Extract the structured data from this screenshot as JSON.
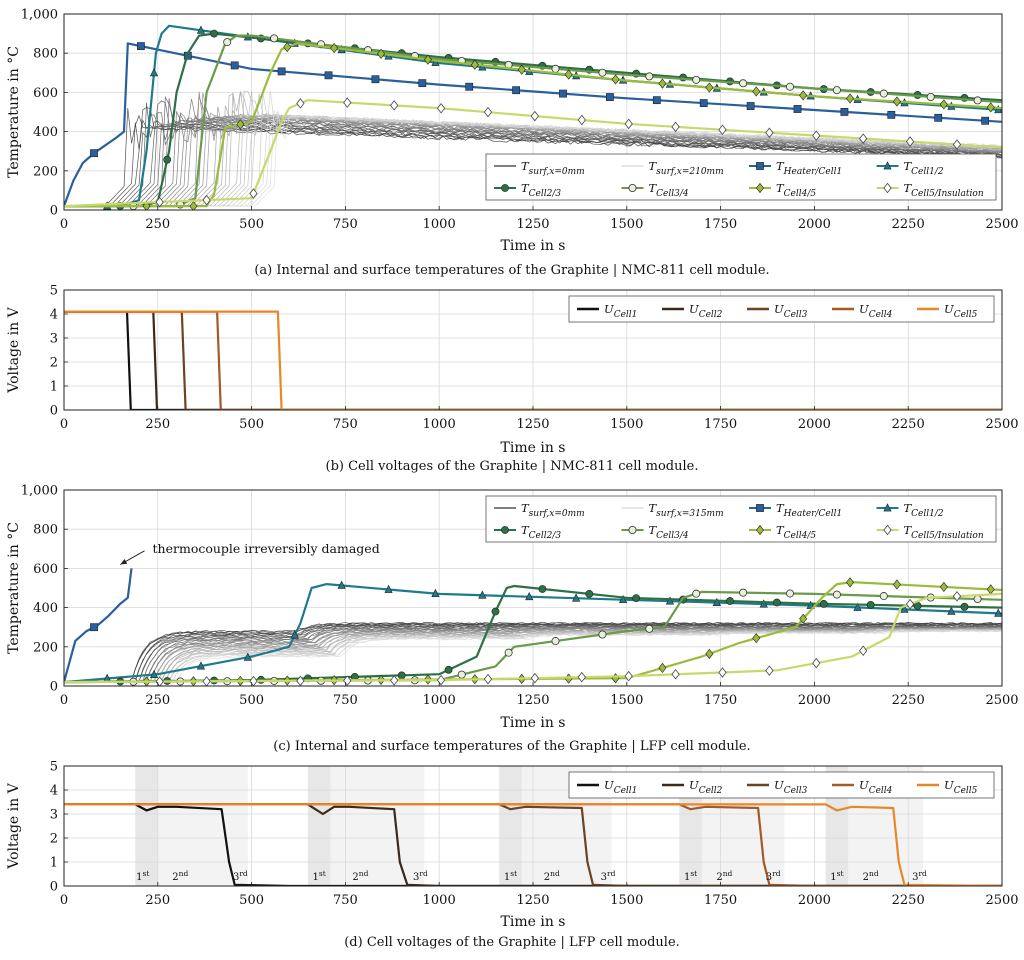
{
  "chart_data": [
    {
      "id": "a",
      "type": "line",
      "caption": "(a) Internal and surface temperatures of the Graphite | NMC-811 cell module.",
      "xlabel": "Time in s",
      "ylabel": "Temperature in °C",
      "xlim": [
        0,
        2500
      ],
      "ylim": [
        0,
        1000
      ],
      "xticks": [
        0,
        250,
        500,
        750,
        1000,
        1250,
        1500,
        1750,
        2000,
        2250,
        2500
      ],
      "yticks": [
        0,
        200,
        400,
        600,
        800,
        1000
      ],
      "ytick_labels": [
        "0",
        "200",
        "400",
        "600",
        "800",
        "1,000"
      ],
      "legend": {
        "position": "bottom-right",
        "columns": 4
      },
      "surface_band": {
        "label_start": "T_surf,x=0mm",
        "label_end": "T_surf,x=210mm",
        "color_dark": "#333333",
        "color_light": "#d6d6d6"
      },
      "series": [
        {
          "name": "T_Heater/Cell1",
          "color": "#2a5f9e",
          "marker": "square",
          "x": [
            0,
            25,
            50,
            80,
            110,
            140,
            160,
            170,
            500,
            1000,
            1500,
            2000,
            2500
          ],
          "y": [
            20,
            150,
            240,
            290,
            330,
            370,
            400,
            850,
            720,
            640,
            570,
            510,
            450
          ]
        },
        {
          "name": "T_Cell1/2",
          "color": "#1f7a8c",
          "marker": "triangle",
          "x": [
            0,
            150,
            200,
            220,
            245,
            260,
            280,
            500,
            1000,
            1500,
            2000,
            2500
          ],
          "y": [
            20,
            20,
            50,
            300,
            800,
            900,
            940,
            880,
            750,
            660,
            580,
            510
          ]
        },
        {
          "name": "T_Cell2/3",
          "color": "#2e7046",
          "marker": "circle",
          "x": [
            0,
            200,
            250,
            280,
            300,
            330,
            360,
            400,
            500,
            1000,
            1500,
            2000,
            2500
          ],
          "y": [
            20,
            20,
            40,
            300,
            600,
            800,
            890,
            900,
            880,
            780,
            700,
            620,
            560
          ]
        },
        {
          "name": "T_Cell3/4",
          "color": "#6a9a4a",
          "marker": "circle-open",
          "x": [
            0,
            300,
            350,
            380,
            400,
            430,
            460,
            500,
            1000,
            1500,
            2000,
            2500
          ],
          "y": [
            20,
            20,
            60,
            600,
            700,
            850,
            890,
            890,
            770,
            690,
            620,
            550
          ]
        },
        {
          "name": "T_Cell4/5",
          "color": "#9bbb3c",
          "marker": "diamond",
          "x": [
            0,
            380,
            400,
            430,
            500,
            550,
            580,
            620,
            1000,
            1500,
            2000,
            2500
          ],
          "y": [
            20,
            20,
            80,
            420,
            450,
            700,
            820,
            850,
            760,
            660,
            580,
            520
          ]
        },
        {
          "name": "T_Cell5/Insulation",
          "color": "#c8d86a",
          "marker": "diamond-open",
          "x": [
            0,
            500,
            550,
            580,
            600,
            650,
            1000,
            1500,
            2000,
            2500
          ],
          "y": [
            20,
            60,
            300,
            450,
            520,
            560,
            520,
            440,
            380,
            320
          ]
        }
      ]
    },
    {
      "id": "b",
      "type": "line",
      "caption": "(b) Cell voltages of the Graphite | NMC-811 cell module.",
      "xlabel": "Time in s",
      "ylabel": "Voltage in V",
      "xlim": [
        0,
        2500
      ],
      "ylim": [
        0,
        5
      ],
      "xticks": [
        0,
        250,
        500,
        750,
        1000,
        1250,
        1500,
        1750,
        2000,
        2250,
        2500
      ],
      "yticks": [
        0,
        1,
        2,
        3,
        4,
        5
      ],
      "ytick_labels": [
        "0",
        "1",
        "2",
        "3",
        "4",
        "5"
      ],
      "legend": {
        "position": "top-right",
        "columns": 5
      },
      "series": [
        {
          "name": "U_Cell1",
          "color": "#111111",
          "x": [
            0,
            168,
            178,
            2500
          ],
          "y": [
            4.1,
            4.1,
            0.0,
            0.0
          ]
        },
        {
          "name": "U_Cell2",
          "color": "#3b2a1c",
          "x": [
            0,
            238,
            248,
            2500
          ],
          "y": [
            4.1,
            4.1,
            0.0,
            0.0
          ]
        },
        {
          "name": "U_Cell3",
          "color": "#6b4422",
          "x": [
            0,
            314,
            324,
            2500
          ],
          "y": [
            4.1,
            4.1,
            0.0,
            0.0
          ]
        },
        {
          "name": "U_Cell4",
          "color": "#a35a25",
          "x": [
            0,
            408,
            418,
            2500
          ],
          "y": [
            4.1,
            4.1,
            0.0,
            0.0
          ]
        },
        {
          "name": "U_Cell5",
          "color": "#e8862a",
          "x": [
            0,
            570,
            580,
            2500
          ],
          "y": [
            4.1,
            4.1,
            0.0,
            0.0
          ]
        }
      ]
    },
    {
      "id": "c",
      "type": "line",
      "caption": "(c) Internal and surface temperatures of the Graphite | LFP cell module.",
      "xlabel": "Time in s",
      "ylabel": "Temperature in °C",
      "xlim": [
        0,
        2500
      ],
      "ylim": [
        0,
        1000
      ],
      "xticks": [
        0,
        250,
        500,
        750,
        1000,
        1250,
        1500,
        1750,
        2000,
        2250,
        2500
      ],
      "yticks": [
        0,
        200,
        400,
        600,
        800,
        1000
      ],
      "ytick_labels": [
        "0",
        "200",
        "400",
        "600",
        "800",
        "1,000"
      ],
      "legend": {
        "position": "top-right",
        "columns": 4
      },
      "annotation": {
        "text": "thermocouple irreversibly damaged",
        "x": 220,
        "y": 700,
        "arrow_to_x": 150,
        "arrow_to_y": 620
      },
      "surface_band": {
        "label_start": "T_surf,x=0mm",
        "label_end": "T_surf,x=315mm",
        "color_dark": "#333333",
        "color_light": "#d6d6d6"
      },
      "series": [
        {
          "name": "T_Heater/Cell1",
          "color": "#2a5f9e",
          "marker": "square",
          "x": [
            0,
            30,
            60,
            90,
            120,
            150,
            170,
            180
          ],
          "y": [
            20,
            230,
            280,
            310,
            360,
            420,
            450,
            600
          ]
        },
        {
          "name": "T_Cell1/2",
          "color": "#1f7a8c",
          "marker": "triangle",
          "x": [
            0,
            250,
            500,
            600,
            630,
            660,
            700,
            1000,
            1500,
            2000,
            2500
          ],
          "y": [
            20,
            60,
            150,
            200,
            320,
            500,
            520,
            470,
            440,
            410,
            370
          ]
        },
        {
          "name": "T_Cell2/3",
          "color": "#2e7046",
          "marker": "circle",
          "x": [
            0,
            500,
            1000,
            1100,
            1150,
            1180,
            1200,
            1500,
            2000,
            2500
          ],
          "y": [
            20,
            30,
            60,
            150,
            380,
            500,
            510,
            450,
            420,
            400
          ]
        },
        {
          "name": "T_Cell3/4",
          "color": "#6a9a4a",
          "marker": "circle-open",
          "x": [
            0,
            1000,
            1150,
            1200,
            1500,
            1600,
            1650,
            1700,
            2000,
            2500
          ],
          "y": [
            20,
            30,
            100,
            200,
            280,
            300,
            450,
            480,
            470,
            440
          ]
        },
        {
          "name": "T_Cell4/5",
          "color": "#9bbb3c",
          "marker": "diamond",
          "x": [
            0,
            1500,
            1700,
            1800,
            1950,
            2020,
            2060,
            2100,
            2500
          ],
          "y": [
            20,
            40,
            150,
            220,
            300,
            450,
            520,
            530,
            490
          ]
        },
        {
          "name": "T_Cell5/Insulation",
          "color": "#c8d86a",
          "marker": "diamond-open",
          "x": [
            0,
            1000,
            1500,
            1900,
            2100,
            2200,
            2230,
            2300,
            2500
          ],
          "y": [
            20,
            30,
            50,
            80,
            150,
            250,
            400,
            450,
            470
          ]
        }
      ]
    },
    {
      "id": "d",
      "type": "line",
      "caption": "(d) Cell voltages of the Graphite | LFP cell module.",
      "xlabel": "Time in s",
      "ylabel": "Voltage in V",
      "xlim": [
        0,
        2500
      ],
      "ylim": [
        0,
        5
      ],
      "xticks": [
        0,
        250,
        500,
        750,
        1000,
        1250,
        1500,
        1750,
        2000,
        2250,
        2500
      ],
      "yticks": [
        0,
        1,
        2,
        3,
        4,
        5
      ],
      "ytick_labels": [
        "0",
        "1",
        "2",
        "3",
        "4",
        "5"
      ],
      "legend": {
        "position": "top-right",
        "columns": 5
      },
      "phases": [
        {
          "start": 190,
          "end": 450,
          "labels": [
            {
              "base": "1",
              "sup": "st",
              "x": 210
            },
            {
              "base": "2",
              "sup": "nd",
              "x": 310
            },
            {
              "base": "3",
              "sup": "rd",
              "x": 470
            }
          ]
        },
        {
          "start": 650,
          "end": 920,
          "labels": [
            {
              "base": "1",
              "sup": "st",
              "x": 680
            },
            {
              "base": "2",
              "sup": "nd",
              "x": 790
            },
            {
              "base": "3",
              "sup": "rd",
              "x": 950
            }
          ]
        },
        {
          "start": 1160,
          "end": 1420,
          "labels": [
            {
              "base": "1",
              "sup": "st",
              "x": 1190
            },
            {
              "base": "2",
              "sup": "nd",
              "x": 1300
            },
            {
              "base": "3",
              "sup": "rd",
              "x": 1450
            }
          ]
        },
        {
          "start": 1640,
          "end": 1880,
          "labels": [
            {
              "base": "1",
              "sup": "st",
              "x": 1670
            },
            {
              "base": "2",
              "sup": "nd",
              "x": 1760
            },
            {
              "base": "3",
              "sup": "rd",
              "x": 1890
            }
          ]
        },
        {
          "start": 2030,
          "end": 2250,
          "labels": [
            {
              "base": "1",
              "sup": "st",
              "x": 2060
            },
            {
              "base": "2",
              "sup": "nd",
              "x": 2150
            },
            {
              "base": "3",
              "sup": "rd",
              "x": 2280
            }
          ]
        }
      ],
      "series": [
        {
          "name": "U_Cell1",
          "color": "#111111",
          "x": [
            0,
            190,
            220,
            250,
            300,
            420,
            440,
            455,
            600,
            2500
          ],
          "y": [
            3.4,
            3.4,
            3.15,
            3.3,
            3.3,
            3.2,
            1.0,
            0.05,
            0.0,
            0.0
          ]
        },
        {
          "name": "U_Cell2",
          "color": "#3b2a1c",
          "x": [
            0,
            650,
            690,
            720,
            760,
            880,
            895,
            915,
            1000,
            2500
          ],
          "y": [
            3.4,
            3.4,
            3.0,
            3.3,
            3.3,
            3.2,
            1.0,
            0.05,
            0.0,
            0.0
          ]
        },
        {
          "name": "U_Cell3",
          "color": "#6b4422",
          "x": [
            0,
            1160,
            1190,
            1230,
            1380,
            1395,
            1410,
            1500,
            2500
          ],
          "y": [
            3.4,
            3.4,
            3.2,
            3.3,
            3.25,
            1.0,
            0.05,
            0.0,
            0.0
          ]
        },
        {
          "name": "U_Cell4",
          "color": "#a35a25",
          "x": [
            0,
            1640,
            1670,
            1710,
            1850,
            1865,
            1880,
            2000,
            2500
          ],
          "y": [
            3.4,
            3.4,
            3.2,
            3.3,
            3.25,
            1.0,
            0.05,
            0.0,
            0.0
          ]
        },
        {
          "name": "U_Cell5",
          "color": "#e8862a",
          "x": [
            0,
            2030,
            2060,
            2100,
            2210,
            2225,
            2240,
            2500
          ],
          "y": [
            3.4,
            3.4,
            3.15,
            3.3,
            3.25,
            1.0,
            0.05,
            0.0
          ]
        }
      ]
    }
  ]
}
